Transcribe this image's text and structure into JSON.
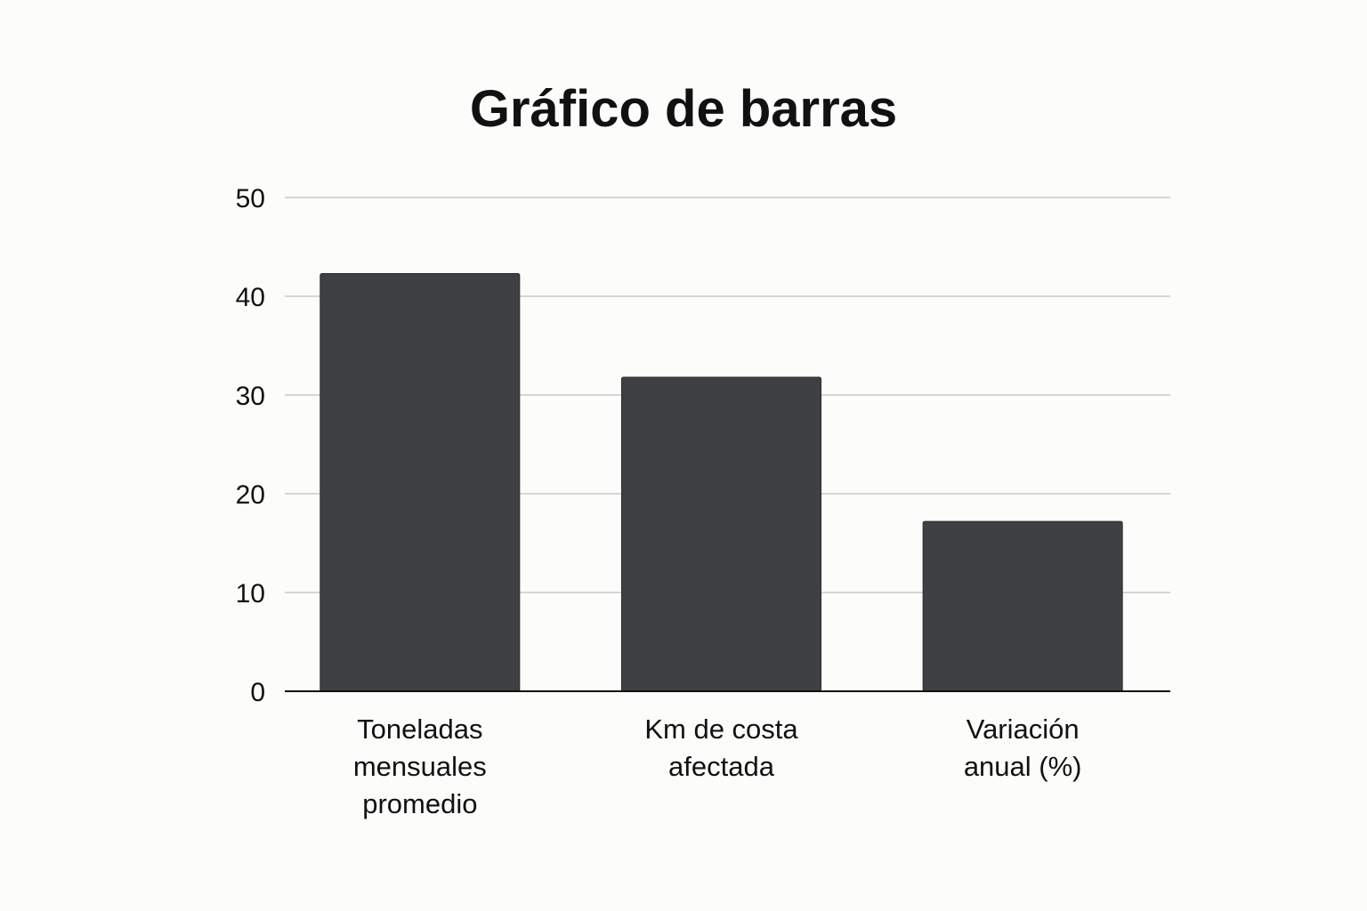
{
  "chart_data": {
    "type": "bar",
    "title": "Gráfico de barras",
    "xlabel": "",
    "ylabel": "",
    "categories": [
      [
        "Toneladas",
        "mensuales",
        "promedio"
      ],
      [
        "Km de costa",
        "afectada"
      ],
      [
        "Variación",
        "anual (%)"
      ]
    ],
    "values": [
      42.3,
      31.8,
      17.2
    ],
    "ylim": [
      0,
      50
    ],
    "yticks": [
      0,
      10,
      20,
      30,
      40,
      50
    ],
    "grid": true,
    "legend": "none",
    "colors": {
      "bar": "#3f4042",
      "grid": "#c8c8c8",
      "axis": "#111111",
      "text": "#111111",
      "background": "#fcfcfa"
    }
  }
}
